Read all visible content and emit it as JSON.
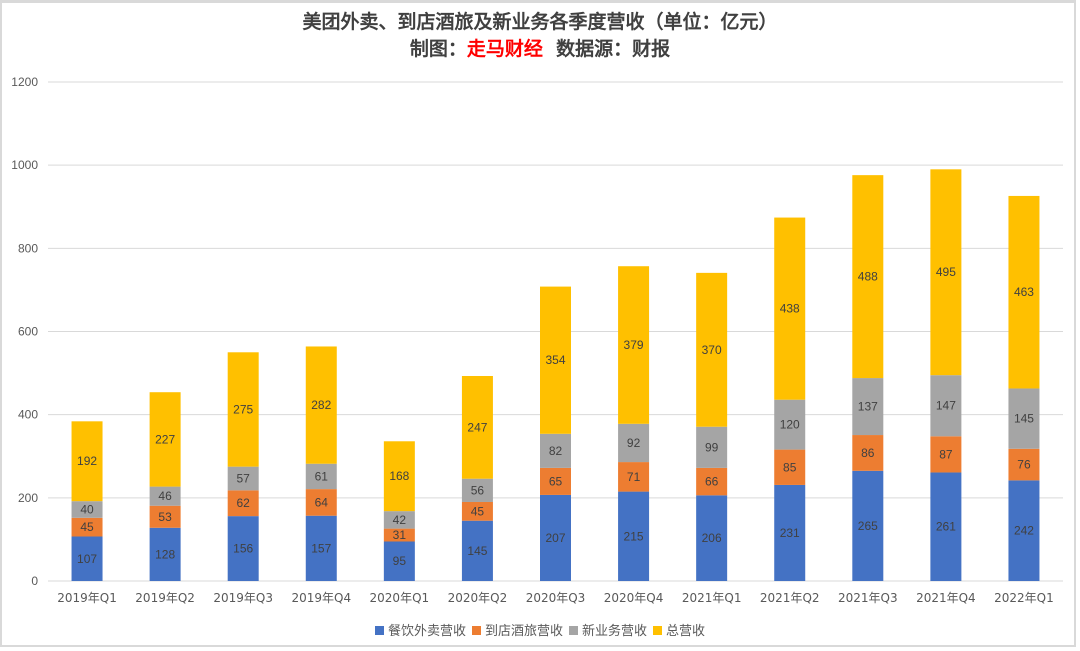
{
  "chart_data": {
    "type": "bar",
    "stacked": true,
    "title": "美团外卖、到店酒旅及新业务各季度营收（单位：亿元）",
    "subtitle": {
      "prefix": "制图：",
      "brand": "走马财经",
      "suffix": "  数据源：财报"
    },
    "xlabel": "",
    "ylabel": "",
    "ylim": [
      0,
      1200
    ],
    "yticks": [
      0,
      200,
      400,
      600,
      800,
      1000,
      1200
    ],
    "grid": true,
    "legend_position": "bottom",
    "categories": [
      "2019年Q1",
      "2019年Q2",
      "2019年Q3",
      "2019年Q4",
      "2020年Q1",
      "2020年Q2",
      "2020年Q3",
      "2020年Q4",
      "2021年Q1",
      "2021年Q2",
      "2021年Q3",
      "2021年Q4",
      "2022年Q1"
    ],
    "series": [
      {
        "name": "餐饮外卖营收",
        "color": "#4472c4",
        "values": [
          107,
          128,
          156,
          157,
          95,
          145,
          207,
          215,
          206,
          231,
          265,
          261,
          242
        ]
      },
      {
        "name": "到店酒旅营收",
        "color": "#ed7d31",
        "values": [
          45,
          53,
          62,
          64,
          31,
          45,
          65,
          71,
          66,
          85,
          86,
          87,
          76
        ]
      },
      {
        "name": "新业务营收",
        "color": "#a5a5a5",
        "values": [
          40,
          46,
          57,
          61,
          42,
          56,
          82,
          92,
          99,
          120,
          137,
          147,
          145
        ]
      },
      {
        "name": "总营收",
        "color": "#ffc000",
        "values": [
          192,
          227,
          275,
          282,
          168,
          247,
          354,
          379,
          370,
          438,
          488,
          495,
          463
        ]
      }
    ]
  }
}
